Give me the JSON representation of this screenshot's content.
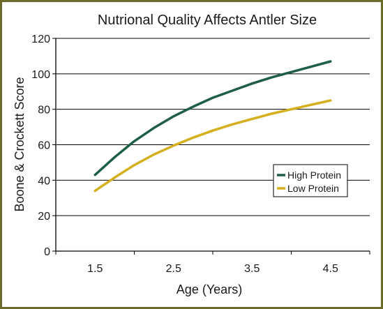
{
  "chart_data": {
    "type": "line",
    "title": "Nutrional Quality Affects Antler Size",
    "xlabel": "Age (Years)",
    "ylabel": "Boone & Crockett Score",
    "xlim": [
      1.0,
      5.0
    ],
    "ylim": [
      0,
      120
    ],
    "xticks": [
      1.5,
      2.5,
      3.5,
      4.5
    ],
    "xtick_labels": [
      "1.5",
      "2.5",
      "3.5",
      "4.5"
    ],
    "yticks": [
      0,
      20,
      40,
      60,
      80,
      100,
      120
    ],
    "ytick_labels": [
      "0",
      "20",
      "40",
      "60",
      "80",
      "100",
      "120"
    ],
    "grid": "horizontal",
    "legend_position": "right",
    "x": [
      1.5,
      1.75,
      2.0,
      2.25,
      2.5,
      2.75,
      3.0,
      3.25,
      3.5,
      3.75,
      4.0,
      4.25,
      4.5
    ],
    "series": [
      {
        "name": "High Protein",
        "color": "#1e5e45",
        "values": [
          43,
          53,
          62,
          69.5,
          76,
          81.5,
          86.5,
          90.5,
          94.5,
          98,
          101,
          104,
          107
        ]
      },
      {
        "name": "Low Protein",
        "color": "#d4b01e",
        "values": [
          34,
          41.5,
          48.5,
          54.5,
          59.5,
          64,
          68,
          71.5,
          74.5,
          77.5,
          80,
          82.5,
          85
        ]
      }
    ]
  }
}
